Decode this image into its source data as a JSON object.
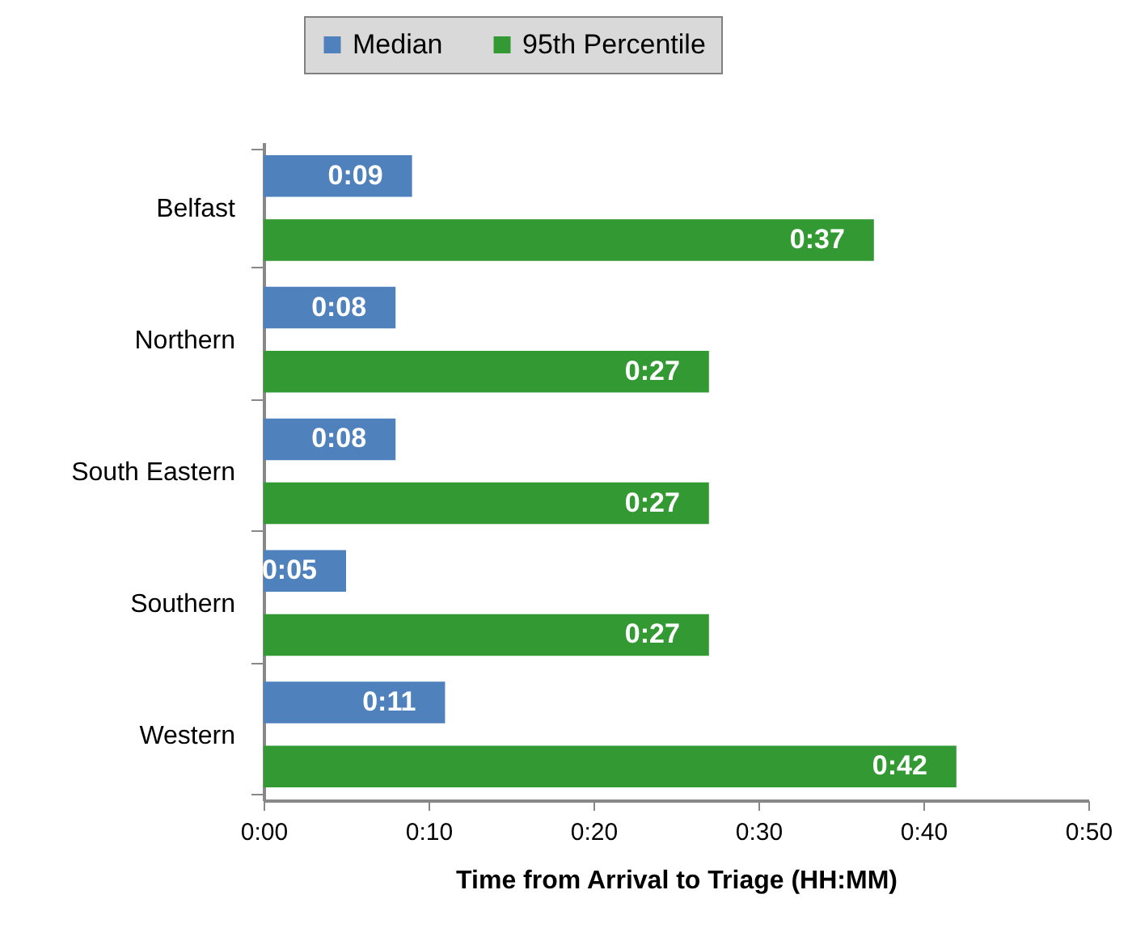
{
  "chart_data": {
    "type": "bar",
    "orientation": "horizontal",
    "xlabel": "Time from Arrival to Triage (HH:MM)",
    "categories": [
      "Belfast",
      "Northern",
      "South Eastern",
      "Southern",
      "Western"
    ],
    "series": [
      {
        "name": "Median",
        "color": "#4f81bd",
        "values": [
          9,
          8,
          8,
          5,
          11
        ],
        "value_labels": [
          "0:09",
          "0:08",
          "0:08",
          "0:05",
          "0:11"
        ]
      },
      {
        "name": "95th Percentile",
        "color": "#339933",
        "values": [
          37,
          27,
          27,
          27,
          42
        ],
        "value_labels": [
          "0:37",
          "0:27",
          "0:27",
          "0:27",
          "0:42"
        ]
      }
    ],
    "xlim": [
      0,
      50
    ],
    "xticks": [
      {
        "value": 0,
        "label": "0:00"
      },
      {
        "value": 10,
        "label": "0:10"
      },
      {
        "value": 20,
        "label": "0:20"
      },
      {
        "value": 30,
        "label": "0:30"
      },
      {
        "value": 40,
        "label": "0:40"
      },
      {
        "value": 50,
        "label": "0:50"
      }
    ],
    "grid": false,
    "legend": "top"
  }
}
